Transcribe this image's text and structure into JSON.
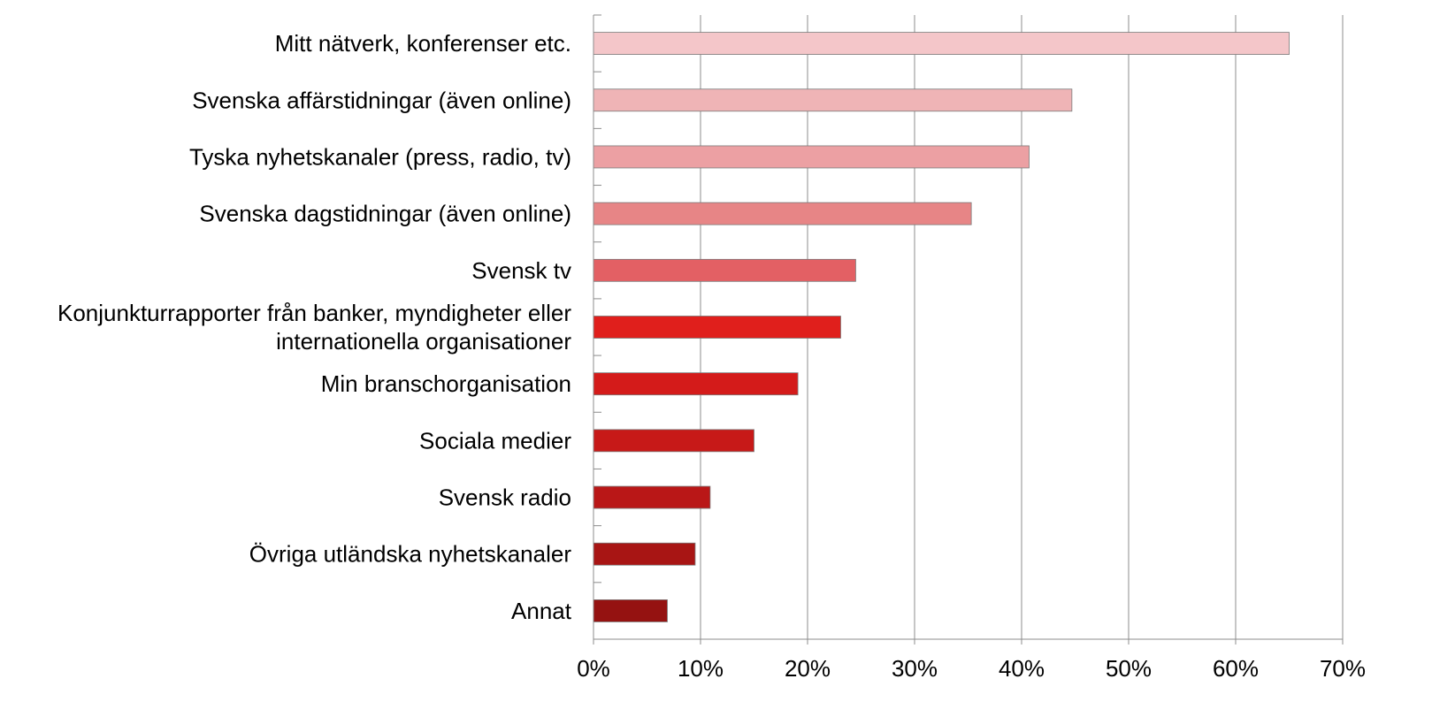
{
  "chart_data": {
    "type": "bar",
    "orientation": "horizontal",
    "title": "",
    "xlabel": "",
    "ylabel": "",
    "xlim": [
      0,
      70
    ],
    "x_ticks": [
      "0%",
      "10%",
      "20%",
      "30%",
      "40%",
      "50%",
      "60%",
      "70%"
    ],
    "grid": "vertical",
    "legend": "none",
    "categories": [
      [
        "Mitt nätverk, konferenser etc."
      ],
      [
        "Svenska affärstidningar (även online)"
      ],
      [
        "Tyska nyhetskanaler (press, radio, tv)"
      ],
      [
        "Svenska dagstidningar (även online)"
      ],
      [
        "Svensk tv"
      ],
      [
        "Konjunkturrapporter från banker, myndigheter eller",
        "internationella organisationer"
      ],
      [
        "Min branschorganisation"
      ],
      [
        "Sociala medier"
      ],
      [
        "Svensk radio"
      ],
      [
        "Övriga utländska nyhetskanaler"
      ],
      [
        "Annat"
      ]
    ],
    "values": [
      65,
      44.7,
      40.7,
      35.3,
      24.5,
      23.1,
      19.1,
      15,
      10.9,
      9.5,
      6.9
    ],
    "colors": [
      "#f4c6c9",
      "#efb4b6",
      "#eca0a3",
      "#e78586",
      "#e36064",
      "#e01f1c",
      "#d41b1a",
      "#c71918",
      "#b91717",
      "#a81514",
      "#951211"
    ]
  }
}
